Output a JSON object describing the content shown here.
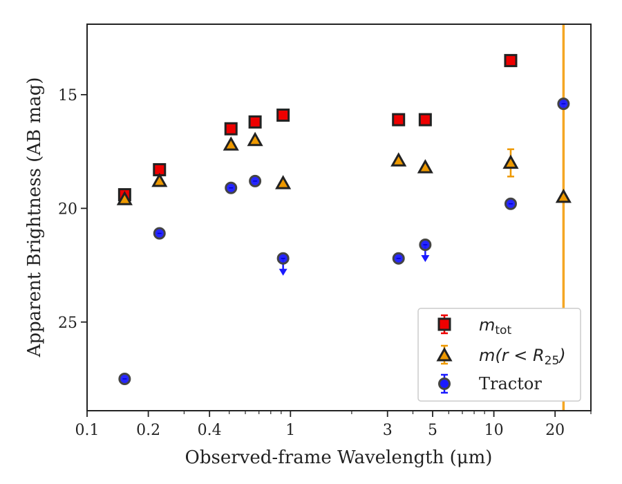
{
  "chart_data": {
    "type": "scatter",
    "title": "",
    "xlabel": "Observed-frame Wavelength (μm)",
    "ylabel": "Apparent Brightness (AB mag)",
    "xscale": "log",
    "yaxis_inverted": true,
    "xlim": [
      0.1,
      30
    ],
    "ylim": [
      28.9,
      11.9
    ],
    "x_ticks": [
      0.1,
      0.2,
      0.4,
      1,
      3,
      5,
      10,
      20
    ],
    "x_tick_labels": [
      "0.1",
      "0.2",
      "0.4",
      "1",
      "3",
      "5",
      "10",
      "20"
    ],
    "y_ticks": [
      15,
      20,
      25
    ],
    "y_tick_labels": [
      "15",
      "20",
      "25"
    ],
    "grid": false,
    "legend_position": "bottom-right",
    "vertical_line": {
      "x": 22.0,
      "color": "#f5a623"
    },
    "series": [
      {
        "name": "m_tot",
        "marker": "square",
        "color": "#ee0000",
        "points": [
          {
            "x": 0.153,
            "y": 19.4
          },
          {
            "x": 0.227,
            "y": 18.3
          },
          {
            "x": 0.51,
            "y": 16.5
          },
          {
            "x": 0.67,
            "y": 16.2
          },
          {
            "x": 0.92,
            "y": 15.9
          },
          {
            "x": 3.4,
            "y": 16.1
          },
          {
            "x": 4.6,
            "y": 16.1
          },
          {
            "x": 12.1,
            "y": 13.5
          }
        ]
      },
      {
        "name": "m(r<R_25)",
        "marker": "triangle",
        "color": "#ee9900",
        "points": [
          {
            "x": 0.153,
            "y": 19.6,
            "yerr": 0.15
          },
          {
            "x": 0.227,
            "y": 18.8,
            "yerr": 0.15
          },
          {
            "x": 0.51,
            "y": 17.2,
            "yerr": 0.15
          },
          {
            "x": 0.67,
            "y": 17.0,
            "yerr": 0.15
          },
          {
            "x": 0.92,
            "y": 18.9,
            "yerr": 0.15
          },
          {
            "x": 3.4,
            "y": 17.9,
            "yerr": 0.15
          },
          {
            "x": 4.6,
            "y": 18.2,
            "yerr": 0.15
          },
          {
            "x": 12.1,
            "y": 18.0,
            "yerr": 0.6
          },
          {
            "x": 22.0,
            "y": 19.5,
            "yerr": 0.15
          }
        ]
      },
      {
        "name": "Tractor",
        "marker": "circle",
        "color": "#1a1aff",
        "points": [
          {
            "x": 0.153,
            "y": 27.5
          },
          {
            "x": 0.227,
            "y": 21.1
          },
          {
            "x": 0.51,
            "y": 19.1
          },
          {
            "x": 0.67,
            "y": 18.8
          },
          {
            "x": 0.92,
            "y": 22.2,
            "upper_limit": true
          },
          {
            "x": 3.4,
            "y": 22.2
          },
          {
            "x": 4.6,
            "y": 21.6,
            "upper_limit": true
          },
          {
            "x": 12.1,
            "y": 19.8
          },
          {
            "x": 22.0,
            "y": 15.4
          }
        ]
      }
    ],
    "legend": [
      {
        "label_base": "m",
        "label_sub": "tot"
      },
      {
        "label_base": "m(r < R",
        "label_sub": "25",
        "label_tail": ")"
      },
      {
        "label_base": "Tractor"
      }
    ]
  }
}
